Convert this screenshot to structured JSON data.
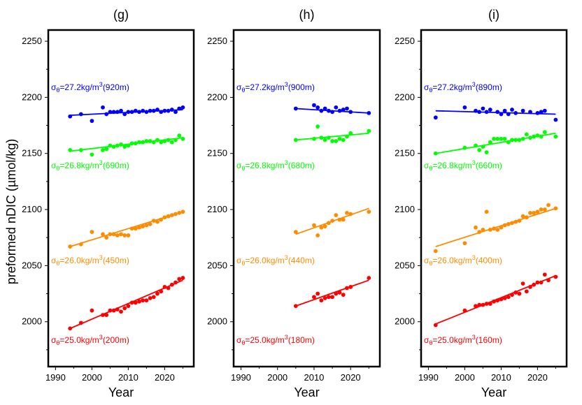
{
  "ylabel": "preformed nDIC (µmol/kg)",
  "chart_data": [
    {
      "type": "scatter",
      "title": "(g)",
      "xlabel": "Year",
      "ylabel": "preformed nDIC (µmol/kg)",
      "xlim": [
        1988,
        2028
      ],
      "ylim": [
        1960,
        2260
      ],
      "x_ticks": [
        1990,
        2000,
        2010,
        2020
      ],
      "y_ticks": [
        2000,
        2050,
        2100,
        2150,
        2200,
        2250
      ],
      "series": [
        {
          "color": "#0000ff",
          "label": {
            "sigma": "σ",
            "sub": "θ",
            "main": "=27.2kg/m",
            "sup": "3",
            "tail": "(920m)"
          },
          "x": [
            1994,
            1997,
            2000,
            2003,
            2004,
            2005,
            2006,
            2007,
            2008,
            2009,
            2010,
            2011,
            2012,
            2013,
            2014,
            2015,
            2016,
            2017,
            2018,
            2019,
            2020,
            2021,
            2022,
            2023,
            2024,
            2025
          ],
          "y": [
            2183,
            2185,
            2179,
            2191,
            2185,
            2187,
            2187,
            2187,
            2188,
            2185,
            2187,
            2187,
            2188,
            2187,
            2188,
            2187,
            2188,
            2188,
            2189,
            2187,
            2188,
            2188,
            2189,
            2187,
            2190,
            2191
          ],
          "fit": [
            [
              1994,
              2184
            ],
            [
              2025,
              2189
            ]
          ]
        },
        {
          "color": "#00ff00",
          "label": {
            "sigma": "σ",
            "sub": "θ",
            "main": "=26.8kg/m",
            "sup": "3",
            "tail": "(690m)"
          },
          "x": [
            1994,
            1997,
            2000,
            2003,
            2004,
            2005,
            2006,
            2007,
            2008,
            2009,
            2010,
            2011,
            2012,
            2013,
            2014,
            2015,
            2016,
            2017,
            2018,
            2019,
            2020,
            2021,
            2022,
            2023,
            2024,
            2025
          ],
          "y": [
            2153,
            2153,
            2149,
            2153,
            2154,
            2157,
            2156,
            2157,
            2158,
            2156,
            2157,
            2159,
            2159,
            2160,
            2160,
            2161,
            2161,
            2160,
            2162,
            2160,
            2161,
            2162,
            2160,
            2162,
            2166,
            2163
          ],
          "fit": [
            [
              1994,
              2152
            ],
            [
              2025,
              2164
            ]
          ]
        },
        {
          "color": "#ff8c00",
          "label": {
            "sigma": "σ",
            "sub": "θ",
            "main": "=26.0kg/m",
            "sup": "3",
            "tail": "(450m)"
          },
          "x": [
            1994,
            1997,
            2000,
            2003,
            2004,
            2005,
            2006,
            2007,
            2008,
            2009,
            2010,
            2011,
            2012,
            2013,
            2014,
            2015,
            2016,
            2017,
            2018,
            2019,
            2020,
            2021,
            2022,
            2023,
            2024,
            2025
          ],
          "y": [
            2067,
            2069,
            2080,
            2078,
            2075,
            2078,
            2078,
            2077,
            2078,
            2077,
            2077,
            2083,
            2083,
            2084,
            2085,
            2086,
            2087,
            2090,
            2089,
            2091,
            2093,
            2094,
            2095,
            2096,
            2097,
            2098
          ],
          "fit": [
            [
              1994,
              2067
            ],
            [
              2025,
              2098
            ]
          ]
        },
        {
          "color": "#ff0000",
          "label": {
            "sigma": "σ",
            "sub": "θ",
            "main": "=25.0kg/m",
            "sup": "3",
            "tail": "(200m)"
          },
          "x": [
            1994,
            1997,
            2000,
            2003,
            2004,
            2005,
            2006,
            2007,
            2008,
            2009,
            2010,
            2011,
            2012,
            2013,
            2014,
            2015,
            2016,
            2017,
            2018,
            2019,
            2020,
            2021,
            2022,
            2023,
            2024,
            2025
          ],
          "y": [
            1994,
            1999,
            2010,
            2006,
            2006,
            2010,
            2010,
            2011,
            2009,
            2012,
            2014,
            2017,
            2017,
            2018,
            2019,
            2019,
            2021,
            2022,
            2025,
            2027,
            2031,
            2030,
            2033,
            2035,
            2038,
            2039
          ],
          "fit": [
            [
              1994,
              1994
            ],
            [
              2025,
              2037
            ]
          ]
        }
      ]
    },
    {
      "type": "scatter",
      "title": "(h)",
      "xlabel": "Year",
      "ylabel": "",
      "xlim": [
        1988,
        2028
      ],
      "ylim": [
        1960,
        2260
      ],
      "x_ticks": [
        1990,
        2000,
        2010,
        2020
      ],
      "y_ticks": [
        2000,
        2050,
        2100,
        2150,
        2200,
        2250
      ],
      "series": [
        {
          "color": "#0000ff",
          "label": {
            "sigma": "σ",
            "sub": "θ",
            "main": "=27.2kg/m",
            "sup": "3",
            "tail": "(900m)"
          },
          "x": [
            2005,
            2010,
            2011,
            2012,
            2013,
            2014,
            2015,
            2016,
            2017,
            2018,
            2019,
            2020,
            2025
          ],
          "y": [
            2190,
            2193,
            2191,
            2188,
            2190,
            2188,
            2187,
            2191,
            2188,
            2189,
            2190,
            2187,
            2186
          ],
          "fit": [
            [
              2005,
              2190
            ],
            [
              2025,
              2186
            ]
          ]
        },
        {
          "color": "#00ff00",
          "label": {
            "sigma": "σ",
            "sub": "θ",
            "main": "=26.8kg/m",
            "sup": "3",
            "tail": "(680m)"
          },
          "x": [
            2005,
            2010,
            2011,
            2012,
            2013,
            2014,
            2015,
            2016,
            2017,
            2018,
            2019,
            2020,
            2025
          ],
          "y": [
            2162,
            2163,
            2174,
            2164,
            2162,
            2164,
            2161,
            2161,
            2163,
            2162,
            2165,
            2168,
            2170
          ],
          "fit": [
            [
              2005,
              2162
            ],
            [
              2025,
              2168
            ]
          ]
        },
        {
          "color": "#ff8c00",
          "label": {
            "sigma": "σ",
            "sub": "θ",
            "main": "=26.0kg/m",
            "sup": "3",
            "tail": "(440m)"
          },
          "x": [
            2005,
            2010,
            2011,
            2012,
            2013,
            2014,
            2015,
            2016,
            2017,
            2018,
            2019,
            2020,
            2025
          ],
          "y": [
            2080,
            2086,
            2077,
            2084,
            2085,
            2088,
            2090,
            2095,
            2091,
            2091,
            2097,
            2096,
            2098
          ],
          "fit": [
            [
              2005,
              2078
            ],
            [
              2025,
              2101
            ]
          ]
        },
        {
          "color": "#ff0000",
          "label": {
            "sigma": "σ",
            "sub": "θ",
            "main": "=25.0kg/m",
            "sup": "3",
            "tail": "(180m)"
          },
          "x": [
            2005,
            2010,
            2011,
            2012,
            2013,
            2014,
            2015,
            2016,
            2017,
            2018,
            2019,
            2020,
            2025
          ],
          "y": [
            2014,
            2022,
            2025,
            2019,
            2021,
            2022,
            2022,
            2025,
            2026,
            2024,
            2030,
            2031,
            2039
          ],
          "fit": [
            [
              2005,
              2014
            ],
            [
              2025,
              2037
            ]
          ]
        }
      ]
    },
    {
      "type": "scatter",
      "title": "(i)",
      "xlabel": "Year",
      "ylabel": "",
      "xlim": [
        1988,
        2028
      ],
      "ylim": [
        1960,
        2260
      ],
      "x_ticks": [
        1990,
        2000,
        2010,
        2020
      ],
      "y_ticks": [
        2000,
        2050,
        2100,
        2150,
        2200,
        2250
      ],
      "series": [
        {
          "color": "#0000ff",
          "label": {
            "sigma": "σ",
            "sub": "θ",
            "main": "=27.2kg/m",
            "sup": "3",
            "tail": "(890m)"
          },
          "x": [
            1992,
            2000,
            2003,
            2004,
            2005,
            2006,
            2007,
            2009,
            2010,
            2011,
            2012,
            2013,
            2014,
            2016,
            2018,
            2020,
            2021,
            2022,
            2025
          ],
          "y": [
            2182,
            2191,
            2188,
            2187,
            2190,
            2187,
            2189,
            2187,
            2185,
            2188,
            2185,
            2189,
            2186,
            2188,
            2187,
            2186,
            2187,
            2188,
            2180
          ],
          "fit": [
            [
              1992,
              2188
            ],
            [
              2025,
              2185
            ]
          ]
        },
        {
          "color": "#00ff00",
          "label": {
            "sigma": "σ",
            "sub": "θ",
            "main": "=26.8kg/m",
            "sup": "3",
            "tail": "(660m)"
          },
          "x": [
            1992,
            2000,
            2003,
            2004,
            2005,
            2006,
            2007,
            2008,
            2009,
            2010,
            2011,
            2012,
            2013,
            2014,
            2015,
            2016,
            2017,
            2018,
            2019,
            2020,
            2021,
            2022,
            2025
          ],
          "y": [
            2150,
            2155,
            2157,
            2153,
            2156,
            2151,
            2160,
            2163,
            2163,
            2163,
            2163,
            2160,
            2162,
            2162,
            2162,
            2163,
            2167,
            2164,
            2165,
            2166,
            2165,
            2169,
            2165
          ],
          "fit": [
            [
              1992,
              2150
            ],
            [
              2025,
              2168
            ]
          ]
        },
        {
          "color": "#ff8c00",
          "label": {
            "sigma": "σ",
            "sub": "θ",
            "main": "=26.0kg/m",
            "sup": "3",
            "tail": "(400m)"
          },
          "x": [
            1992,
            2000,
            2003,
            2004,
            2005,
            2006,
            2007,
            2008,
            2009,
            2010,
            2011,
            2012,
            2013,
            2014,
            2015,
            2016,
            2017,
            2018,
            2019,
            2020,
            2021,
            2022,
            2023,
            2025
          ],
          "y": [
            2063,
            2070,
            2084,
            2080,
            2082,
            2098,
            2082,
            2083,
            2082,
            2084,
            2086,
            2087,
            2088,
            2089,
            2090,
            2094,
            2093,
            2097,
            2097,
            2098,
            2100,
            2100,
            2104,
            2101
          ],
          "fit": [
            [
              1992,
              2067
            ],
            [
              2025,
              2101
            ]
          ]
        },
        {
          "color": "#ff0000",
          "label": {
            "sigma": "σ",
            "sub": "θ",
            "main": "=25.0kg/m",
            "sup": "3",
            "tail": "(160m)"
          },
          "x": [
            1992,
            2000,
            2003,
            2004,
            2005,
            2006,
            2007,
            2008,
            2009,
            2010,
            2011,
            2012,
            2013,
            2014,
            2015,
            2016,
            2017,
            2018,
            2019,
            2020,
            2021,
            2022,
            2023,
            2025
          ],
          "y": [
            1997,
            2010,
            2014,
            2015,
            2015,
            2016,
            2016,
            2018,
            2019,
            2020,
            2021,
            2022,
            2024,
            2026,
            2025,
            2034,
            2027,
            2031,
            2033,
            2035,
            2035,
            2042,
            2037,
            2040
          ],
          "fit": [
            [
              1992,
              1998
            ],
            [
              2025,
              2041
            ]
          ]
        }
      ]
    }
  ]
}
